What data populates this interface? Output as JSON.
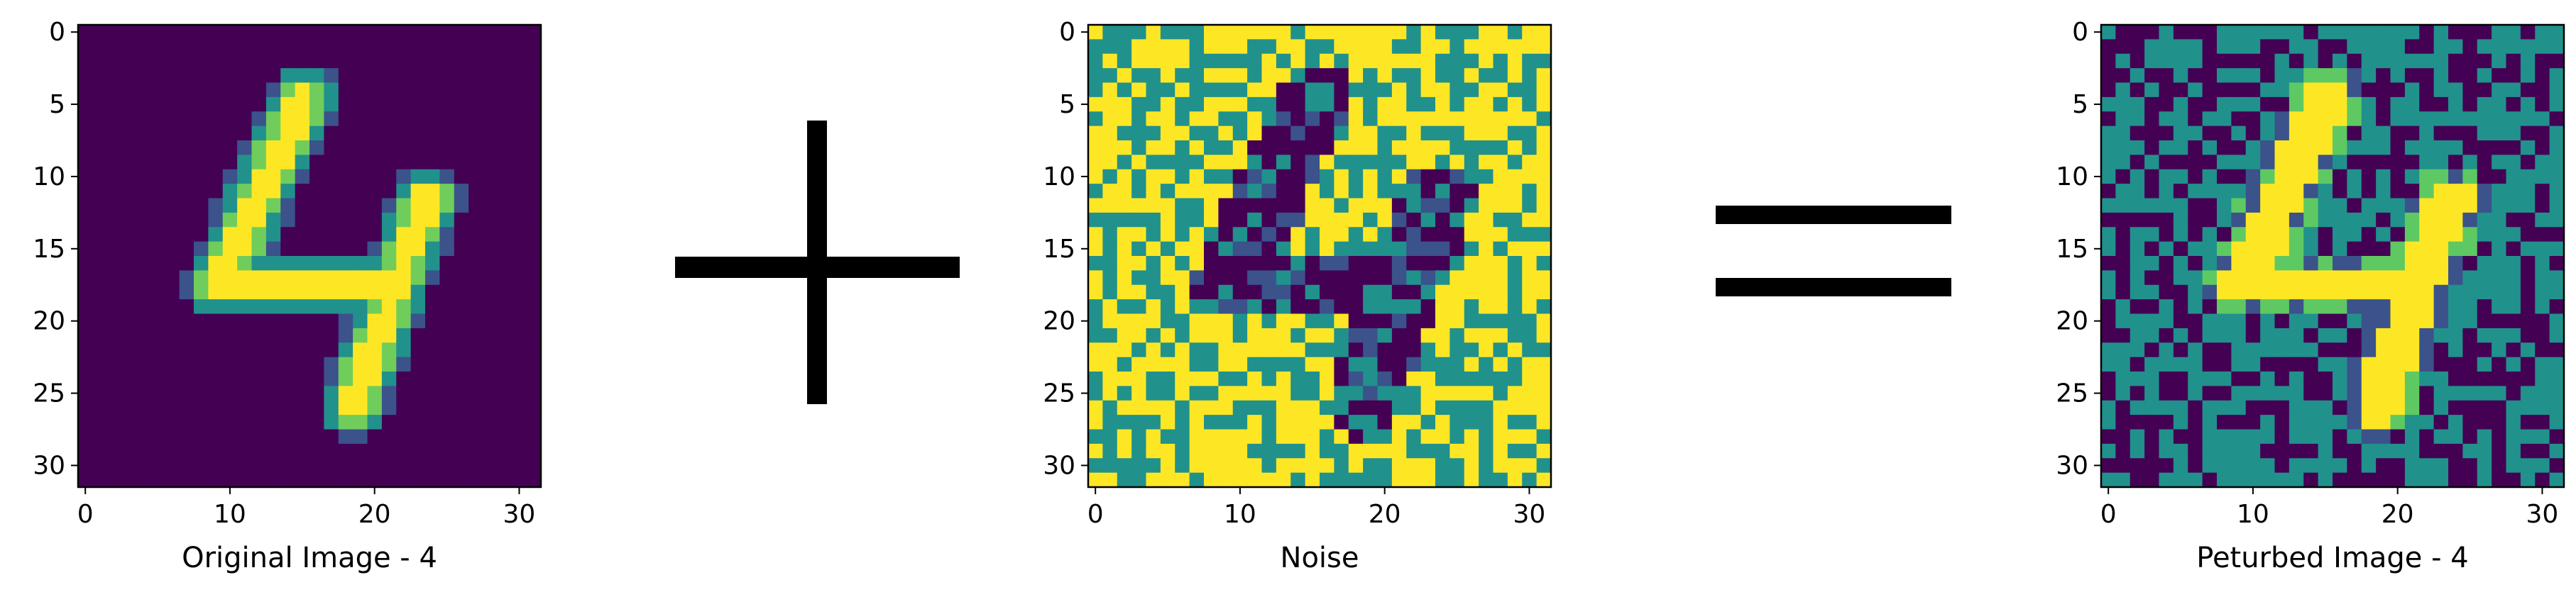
{
  "operators": [
    "+",
    "="
  ],
  "colormap": [
    "#440154",
    "#3b528b",
    "#21918c",
    "#5ec962",
    "#fde725"
  ],
  "chart_data": [
    {
      "type": "heatmap",
      "xlabel": "Original Image - 4",
      "xticks": [
        0,
        10,
        20,
        30
      ],
      "yticks": [
        0,
        5,
        10,
        15,
        20,
        25,
        30
      ],
      "xlim": [
        -0.5,
        31.5
      ],
      "ylim": [
        31.5,
        -0.5
      ],
      "grid_size": 32,
      "cmap": "viridis",
      "content": "MNIST digit 4 (grayscale 0-1)"
    },
    {
      "type": "heatmap",
      "xlabel": "Noise",
      "xticks": [
        0,
        10,
        20,
        30
      ],
      "yticks": [
        0,
        5,
        10,
        15,
        20,
        25,
        30
      ],
      "xlim": [
        -0.5,
        31.5
      ],
      "ylim": [
        31.5,
        -0.5
      ],
      "grid_size": 32,
      "cmap": "viridis",
      "content": "binary random noise (teal / yellow) with dark digit-shaped region"
    },
    {
      "type": "heatmap",
      "xlabel": "Peturbed Image - 4",
      "xticks": [
        0,
        10,
        20,
        30
      ],
      "yticks": [
        0,
        5,
        10,
        15,
        20,
        25,
        30
      ],
      "xlim": [
        -0.5,
        31.5
      ],
      "ylim": [
        31.5,
        -0.5
      ],
      "grid_size": 32,
      "cmap": "viridis",
      "content": "binary noise (purple / teal) with yellow digit 4"
    }
  ]
}
